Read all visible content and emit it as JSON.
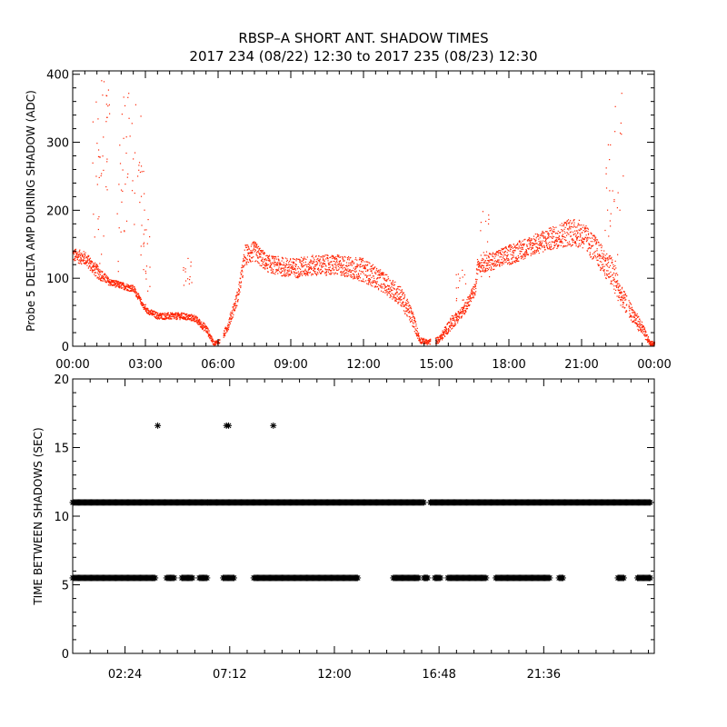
{
  "colors": {
    "background": "#ffffff",
    "axes": "#000000",
    "amp_points": "#ff2200",
    "interval_markers": "#000000"
  },
  "chart_data": [
    {
      "type": "scatter",
      "title": "RBSP–A SHORT ANT. SHADOW TIMES",
      "subtitle": "2017 234 (08/22) 12:30 to 2017 235 (08/23) 12:30",
      "ylabel": "Probe 5 DELTA AMP DURING SHADOW (ADC)",
      "xlabel": "",
      "xlim_hours": [
        0,
        24
      ],
      "ylim": [
        0,
        405
      ],
      "x_ticks": [
        "00:00",
        "03:00",
        "06:00",
        "09:00",
        "12:00",
        "15:00",
        "18:00",
        "21:00",
        "00:00"
      ],
      "y_ticks": [
        "0",
        "100",
        "200",
        "300",
        "400"
      ],
      "marker": "dot",
      "series_color": "#ff2200",
      "envelope_hours": [
        0,
        0.5,
        1,
        1.5,
        2,
        2.5,
        3,
        3.5,
        4,
        4.5,
        5,
        5.5,
        5.8,
        6.1,
        6.4,
        6.8,
        7.1,
        7.5,
        8,
        9,
        10,
        11,
        12,
        12.8,
        13.5,
        14,
        14.3,
        14.6,
        15.1,
        15.6,
        16.1,
        16.6,
        16.7,
        17,
        18,
        19,
        20,
        20.5,
        21,
        21.5,
        22,
        22.3,
        22.6,
        23,
        23.5,
        23.8
      ],
      "envelope_low": [
        125,
        120,
        100,
        90,
        85,
        80,
        50,
        40,
        40,
        40,
        37,
        20,
        2,
        5,
        25,
        65,
        120,
        125,
        110,
        100,
        105,
        105,
        95,
        80,
        60,
        30,
        5,
        3,
        5,
        25,
        45,
        75,
        110,
        110,
        120,
        135,
        145,
        148,
        145,
        125,
        100,
        80,
        60,
        40,
        15,
        2
      ],
      "envelope_high": [
        145,
        140,
        120,
        100,
        95,
        90,
        58,
        50,
        50,
        50,
        47,
        32,
        8,
        12,
        40,
        85,
        150,
        155,
        135,
        130,
        135,
        135,
        130,
        110,
        90,
        55,
        15,
        10,
        15,
        45,
        60,
        95,
        135,
        135,
        150,
        165,
        180,
        190,
        185,
        165,
        140,
        130,
        90,
        65,
        35,
        8
      ]
    },
    {
      "type": "scatter",
      "title": "",
      "ylabel": "TIME BETWEEN SHADOWS (SEC)",
      "xlabel": "",
      "xlim_hours": [
        0,
        26.67
      ],
      "ylim": [
        0,
        20
      ],
      "x_ticks": [
        "02:24",
        "07:12",
        "12:00",
        "16:48",
        "21:36"
      ],
      "x_tick_hours": [
        2.4,
        7.2,
        12.0,
        16.8,
        21.6
      ],
      "y_ticks": [
        "0",
        "5",
        "10",
        "15",
        "20"
      ],
      "marker": "asterisk",
      "series_color": "#000000",
      "series": [
        {
          "values_sec": 11.0,
          "hour_ranges": [
            [
              0,
              6.2
            ],
            [
              6.2,
              16.1
            ],
            [
              16.4,
              26.5
            ]
          ]
        },
        {
          "values_sec": 5.5,
          "hour_ranges": [
            [
              0,
              3.8
            ],
            [
              4.3,
              4.7
            ],
            [
              5.0,
              5.5
            ],
            [
              5.8,
              6.2
            ],
            [
              6.9,
              7.4
            ],
            [
              8.3,
              13.1
            ],
            [
              14.7,
              15.9
            ],
            [
              16.1,
              16.3
            ],
            [
              16.6,
              16.9
            ],
            [
              17.2,
              19.0
            ],
            [
              19.4,
              21.9
            ],
            [
              22.3,
              22.5
            ],
            [
              25.0,
              25.3
            ],
            [
              25.9,
              26.5
            ]
          ]
        },
        {
          "values_sec": 16.6,
          "hours": [
            3.9,
            7.05,
            7.15,
            9.2
          ]
        }
      ]
    }
  ]
}
